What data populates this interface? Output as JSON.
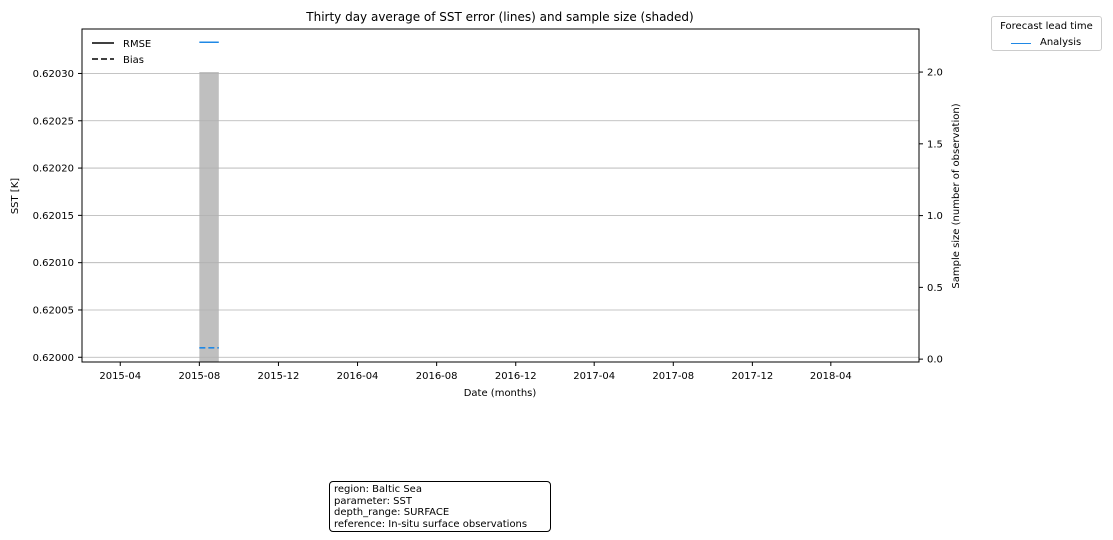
{
  "chart_data": {
    "type": "line",
    "title": "Thirty day average of SST error (lines) and sample size (shaded)",
    "xlabel": "Date (months)",
    "ylabel": "SST [K]",
    "y2label": "Sample size (number of observation)",
    "x_ticks": [
      "2015-04",
      "2015-08",
      "2015-12",
      "2016-04",
      "2016-08",
      "2016-12",
      "2017-04",
      "2017-08",
      "2017-12",
      "2018-04"
    ],
    "y_ticks": [
      "0.62000",
      "0.62005",
      "0.62010",
      "0.62015",
      "0.62020",
      "0.62025",
      "0.62030"
    ],
    "y2_ticks": [
      "0.0",
      "0.5",
      "1.0",
      "1.5",
      "2.0"
    ],
    "ylim": [
      0.619995,
      0.620347
    ],
    "y2lim": [
      -0.02,
      2.3
    ],
    "xlim": [
      "2015-02-01",
      "2018-08-15"
    ],
    "grid": "horizontal",
    "series": [
      {
        "name": "Analysis",
        "metric": "RMSE",
        "style": "solid",
        "color": "#1f88e5",
        "x": [
          "2015-08-01",
          "2015-08-31"
        ],
        "y": [
          0.620333,
          0.620333
        ]
      },
      {
        "name": "Analysis",
        "metric": "Bias",
        "style": "dashed",
        "color": "#1f88e5",
        "x": [
          "2015-08-01",
          "2015-08-31"
        ],
        "y": [
          0.62001,
          0.62001
        ]
      }
    ],
    "sample_size": {
      "color": "#bfbfbf",
      "x": [
        "2015-08-01",
        "2015-08-31"
      ],
      "values": [
        2
      ]
    },
    "legend_metrics": [
      {
        "label": "RMSE",
        "style": "solid"
      },
      {
        "label": "Bias",
        "style": "dashed"
      }
    ],
    "legend_metrics_placement": "upper-left",
    "legend_forecast": {
      "title": "Forecast lead time",
      "items": [
        {
          "label": "Analysis",
          "color": "#1f88e5"
        }
      ],
      "placement": "outside-right"
    }
  },
  "info": [
    "region: Baltic Sea",
    "parameter: SST",
    "depth_range: SURFACE",
    "reference: In-situ surface observations"
  ]
}
